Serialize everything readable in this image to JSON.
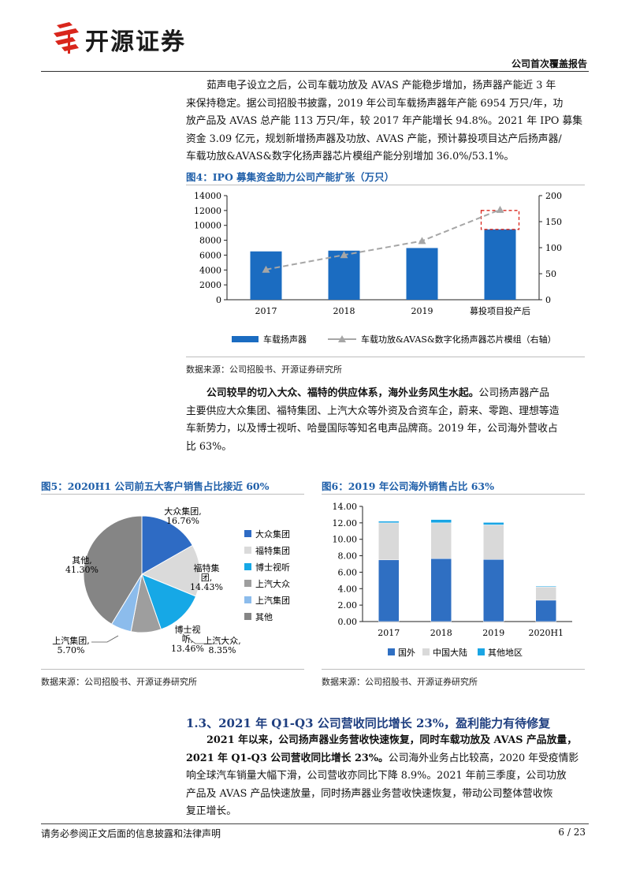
{
  "header": {
    "logo_text": "开源证券",
    "report_type": "公司首次覆盖报告"
  },
  "intro_paragraph": {
    "lines": [
      "茹声电子设立之后，公司车载功放及 AVAS 产能稳步增加，扬声器产能近 3 年",
      "来保持稳定。据公司招股书披露，2019 年公司车载扬声器年产能 6954 万只/年，功",
      "放产品及 AVAS 总产能 113 万只/年，较 2017 年产能增长 94.8%。2021 年 IPO 募集",
      "资金 3.09 亿元，规划新增扬声器及功放、AVAS 产能，预计募投项目达产后扬声器/",
      "车载功放&AVAS&数字化扬声器芯片模组产能分别增加 36.0%/53.1%。"
    ]
  },
  "figure4": {
    "title": "图4：IPO 募集资金助力公司产能扩张（万只）",
    "source": "数据来源：公司招股书、开源证券研究所"
  },
  "paragraph2": {
    "lines": [
      [
        "公司较早的切入大众、福特的供应体系，海外业务风生水起。",
        "公司扬声器产品"
      ],
      [
        "",
        "主要供应大众集团、福特集团、上汽大众等外资及合资车企，蔚来、零跑、理想等造"
      ],
      [
        "",
        "车新势力，以及博士视听、哈曼国际等知名电声品牌商。2019 年，公司海外营收占"
      ],
      [
        "",
        "比 63%。"
      ]
    ]
  },
  "figure5": {
    "title": "图5：2020H1 公司前五大客户销售占比接近 60%",
    "source": "数据来源：公司招股书、开源证券研究所"
  },
  "figure6": {
    "title": "图6：2019 年公司海外销售占比 63%",
    "source": "数据来源：公司招股书、开源证券研究所"
  },
  "section": {
    "heading": "1.3、2021 年 Q1-Q3 公司营收同比增长 23%，盈利能力有待修复",
    "lines": [
      [
        "2021 年以来，公司扬声器业务营收快速恢复，同时车载功放及 AVAS 产品放量，",
        ""
      ],
      [
        "2021 年 Q1-Q3 公司营收同比增长 23%。",
        "公司海外业务占比较高，2020 年受疫情影"
      ],
      [
        "",
        "响全球汽车销量大幅下滑，公司营收亦同比下降 8.9%。2021 年前三季度，公司功放"
      ],
      [
        "",
        "产品及 AVAS 产品快速放量，同时扬声器业务营收快速恢复，带动公司整体营收恢"
      ],
      [
        "",
        "复正增长。"
      ]
    ]
  },
  "footer": {
    "disclaimer": "请务必参阅正文后面的信息披露和法律声明",
    "page": "6 / 23"
  },
  "colors": {
    "bar_blue": "#1b6cc1",
    "line_gray": "#a6a6a6",
    "highlight_red": "#d9261c",
    "title_blue": "#1f5fa9",
    "pie": [
      "#2e6bc4",
      "#dadada",
      "#16a8e6",
      "#9e9e9e",
      "#8cbcec",
      "#858585"
    ],
    "stack_overseas": "#2f6fc2",
    "stack_mainland": "#d9d9d9",
    "stack_other": "#1aa5e4"
  },
  "chart_data": [
    {
      "type": "bar",
      "categories": [
        "2017",
        "2018",
        "2019",
        "募投项目投产后"
      ],
      "series": [
        {
          "name": "车载扬声器",
          "axis": "left",
          "type": "bar",
          "values": [
            6500,
            6600,
            6954,
            9457
          ]
        },
        {
          "name": "车载功放&AVAS&数字化扬声器芯片模组（右轴）",
          "axis": "right",
          "type": "line",
          "style": "dashed",
          "marker": "triangle",
          "values": [
            58,
            86,
            113,
            173
          ]
        }
      ],
      "ylim_left": [
        0,
        14000
      ],
      "yticks_left": [
        0,
        2000,
        4000,
        6000,
        8000,
        10000,
        12000,
        14000
      ],
      "ylim_right": [
        0,
        200
      ],
      "yticks_right": [
        0,
        50,
        100,
        150,
        200
      ],
      "legend_position": "bottom",
      "annotation": "dashed red box highlighting the capacity increment added by the IPO projects"
    },
    {
      "type": "pie",
      "labels": [
        "大众集团",
        "福特集团",
        "博士视听",
        "上汽大众",
        "上汽集团",
        "其他"
      ],
      "value_labels": [
        "16.76%",
        "14.43%",
        "13.46%",
        "8.35%",
        "5.70%",
        "41.30%"
      ],
      "values": [
        16.76,
        14.43,
        13.46,
        8.35,
        5.7,
        41.3
      ],
      "slice_labels": [
        [
          "大众集团,",
          "16.76%"
        ],
        [
          "福特集",
          "团,",
          "14.43%"
        ],
        [
          "博士视",
          "听,",
          "13.46%"
        ],
        [
          "上汽大众,",
          "8.35%"
        ],
        [
          "上汽集团,",
          "5.70%"
        ],
        [
          "其他,",
          "41.30%"
        ]
      ],
      "legend_position": "right"
    },
    {
      "type": "bar",
      "stacked": true,
      "categories": [
        "2017",
        "2018",
        "2019",
        "2020H1"
      ],
      "series": [
        {
          "name": "国外",
          "values": [
            7.5,
            7.65,
            7.55,
            2.6
          ]
        },
        {
          "name": "中国大陆",
          "values": [
            4.5,
            4.35,
            4.2,
            1.6
          ]
        },
        {
          "name": "其他地区",
          "values": [
            0.2,
            0.4,
            0.3,
            0.1
          ]
        }
      ],
      "ylim": [
        0,
        14
      ],
      "yticks": [
        "0.00",
        "2.00",
        "4.00",
        "6.00",
        "8.00",
        "10.00",
        "12.00",
        "14.00"
      ],
      "legend_position": "bottom"
    }
  ]
}
